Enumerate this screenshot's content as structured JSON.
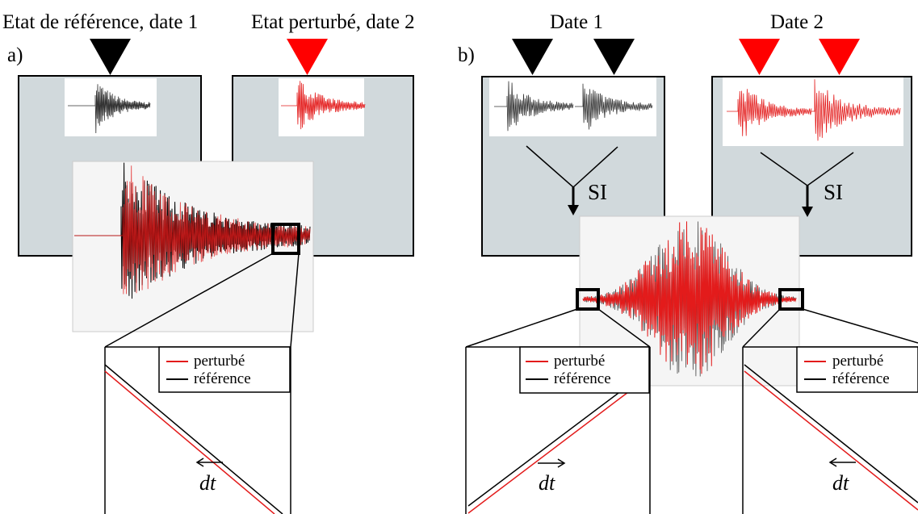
{
  "panel_a": {
    "letter": "a)",
    "heading_left": "Etat de référence, date 1",
    "heading_right": "Etat perturbé, date 2",
    "legend": {
      "perturbed": "perturbé",
      "reference": "référence"
    },
    "dt_label": "dt"
  },
  "panel_b": {
    "letter": "b)",
    "heading_left": "Date 1",
    "heading_right": "Date 2",
    "si_label": "SI",
    "legend": {
      "perturbed": "perturbé",
      "reference": "référence"
    },
    "dt_label": "dt"
  },
  "colors": {
    "reference": "#000000",
    "perturbed": "#e31b1b",
    "panel_fill": "#d1d9dc",
    "plot_fill": "#f5f5f5"
  }
}
